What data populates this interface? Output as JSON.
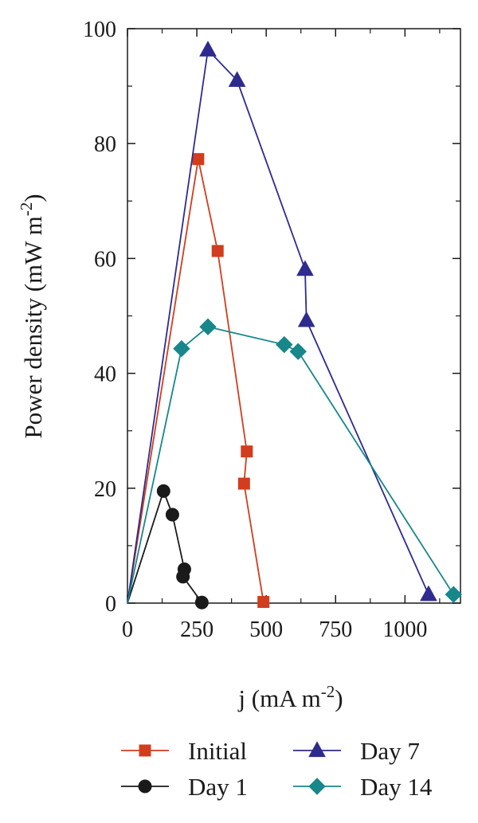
{
  "chart_data": {
    "type": "line",
    "title": "",
    "xlabel": {
      "text": "j (mA m",
      "sup": "-2",
      "tail": ")"
    },
    "ylabel": {
      "text": "Power density (mW m",
      "sup": "-2",
      "tail": ")"
    },
    "xlim": [
      0,
      1200
    ],
    "ylim": [
      0,
      100
    ],
    "xticks": [
      0,
      250,
      500,
      750,
      1000
    ],
    "yticks": [
      0,
      20,
      40,
      60,
      80,
      100
    ],
    "grid": false,
    "legend_position": "bottom",
    "series": [
      {
        "name": "Initial",
        "color": "#d13d1e",
        "marker": "square",
        "x": [
          0,
          255,
          325,
          430,
          420,
          490
        ],
        "y": [
          0,
          77.3,
          61.3,
          26.4,
          20.8,
          0.2
        ]
      },
      {
        "name": "Day 7",
        "color": "#2e2b8f",
        "marker": "triangle",
        "x": [
          0,
          290,
          395,
          640,
          645,
          1085
        ],
        "y": [
          0,
          96.3,
          91.0,
          58.1,
          49.2,
          1.5
        ]
      },
      {
        "name": "Day 1",
        "color": "#1a1a1a",
        "marker": "circle",
        "x": [
          0,
          130,
          162,
          205,
          200,
          268
        ],
        "y": [
          0,
          19.5,
          15.4,
          5.9,
          4.6,
          0.1
        ]
      },
      {
        "name": "Day 14",
        "color": "#17878a",
        "marker": "diamond",
        "x": [
          0,
          195,
          290,
          565,
          615,
          1175
        ],
        "y": [
          0,
          44.3,
          48.1,
          45.0,
          43.8,
          1.5
        ]
      }
    ]
  }
}
